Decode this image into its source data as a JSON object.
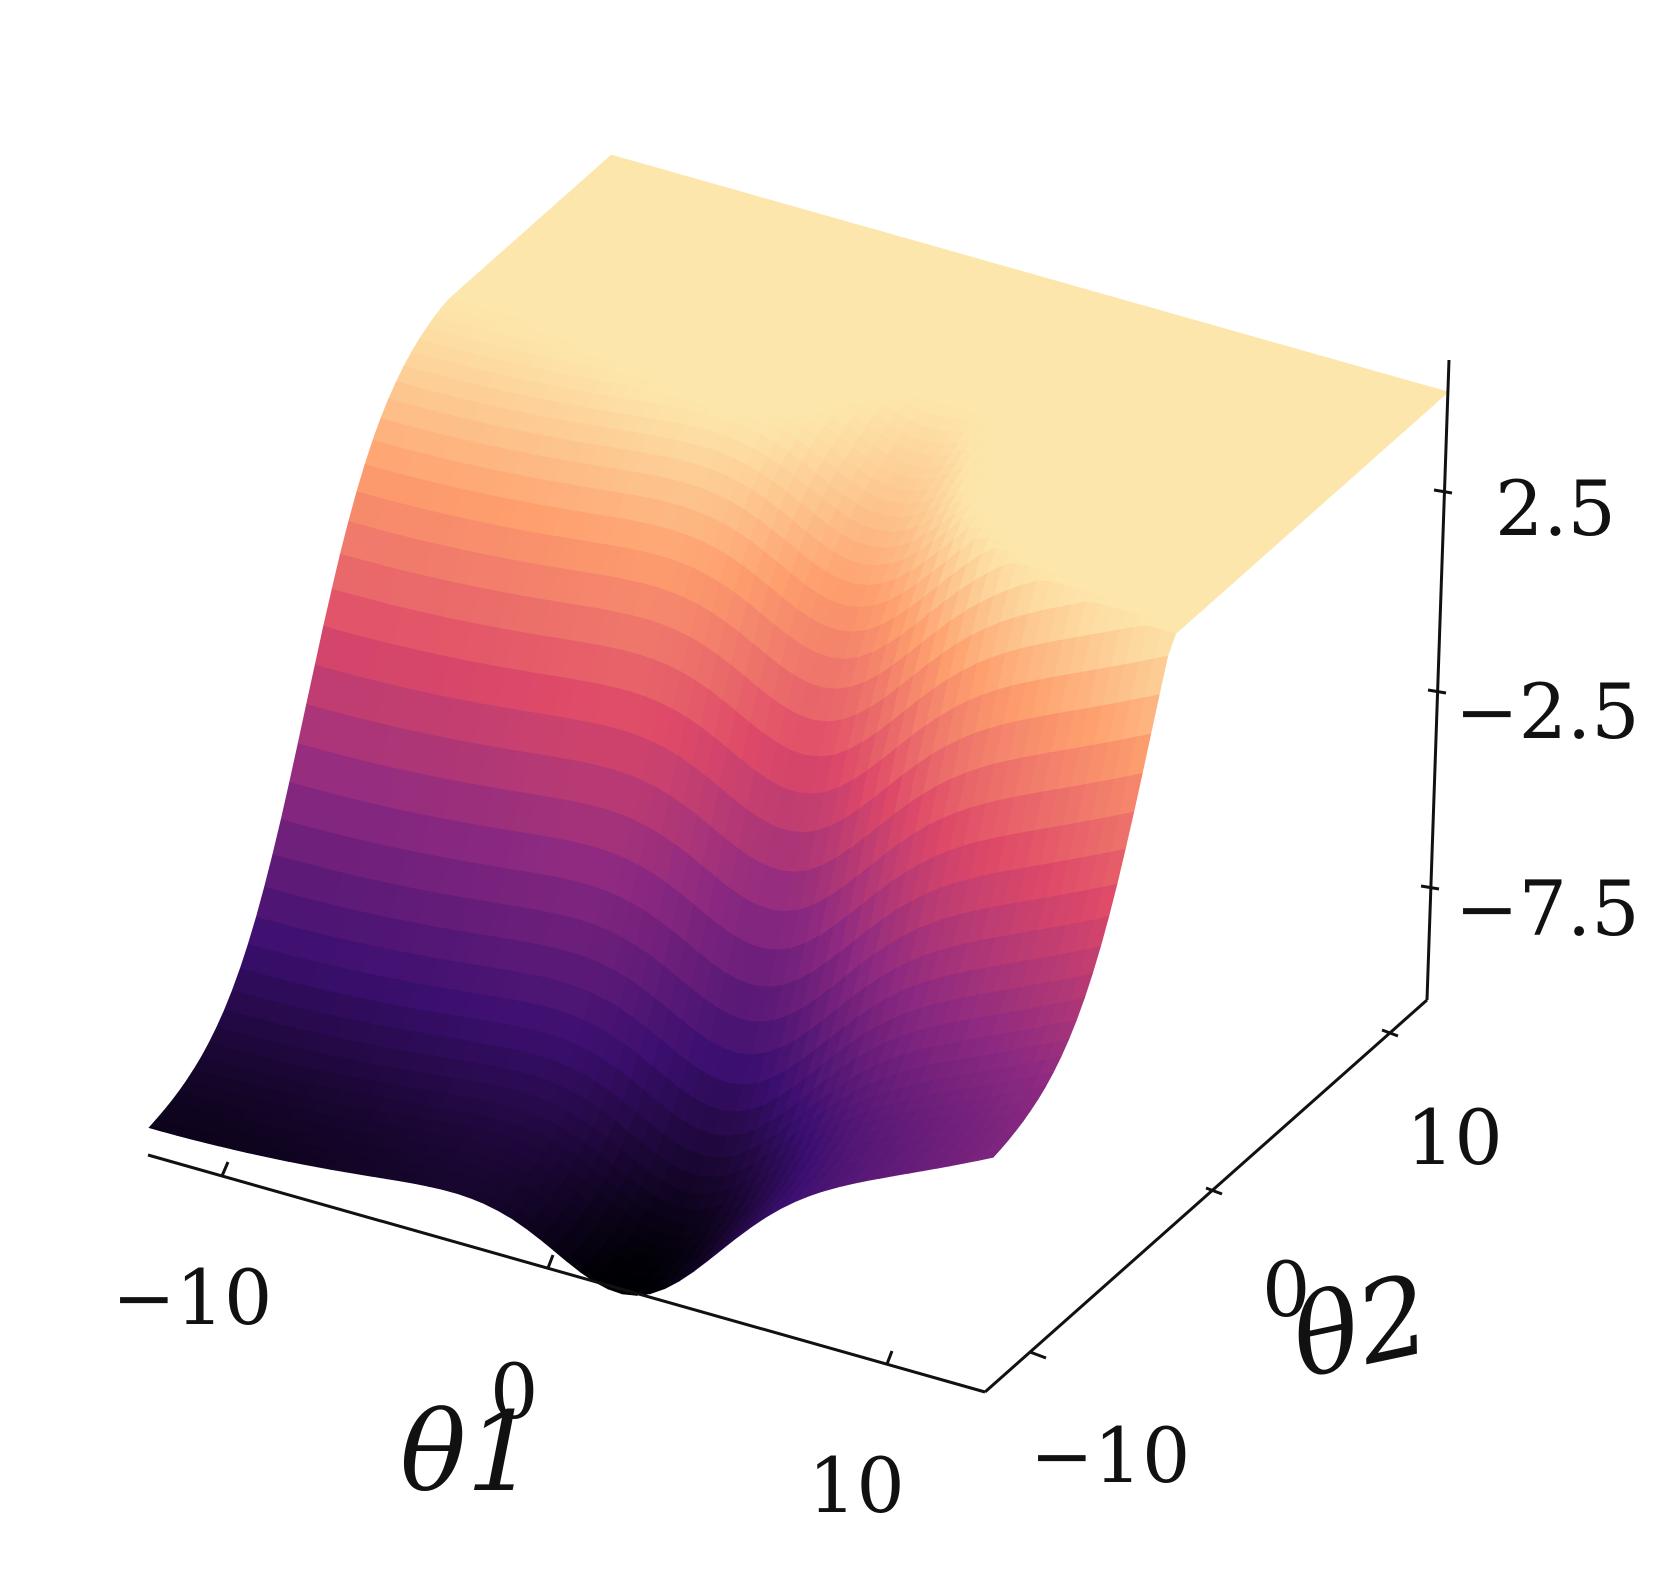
{
  "chart_data": {
    "type": "surface",
    "colormap": "magma",
    "x_axis": {
      "label": "θ1",
      "ticks": [
        "−10",
        "0",
        "10"
      ],
      "range": [
        -12,
        12
      ]
    },
    "y_axis": {
      "label": "θ2",
      "ticks": [
        "−10",
        "0",
        "10"
      ],
      "range": [
        -12,
        12
      ]
    },
    "z_axis": {
      "label": "",
      "ticks": [
        "−7.5",
        "−2.5",
        "2.5"
      ],
      "range": [
        -11,
        5
      ]
    },
    "grid": false,
    "colors": [
      "#000004",
      "#3b0f70",
      "#8c2981",
      "#de4968",
      "#fe9f6d",
      "#fcfdbf"
    ]
  }
}
